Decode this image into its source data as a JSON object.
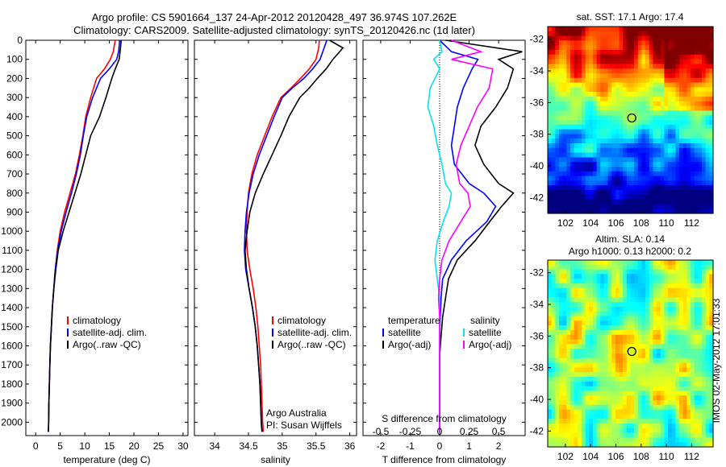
{
  "title_line1": "Argo profile: CS 5901664_137 24-Apr-2012 20120428_497 36.974S 107.262E",
  "title_line2": "Climatology: CARS2009. Satellite-adjusted climatology: synTS_20120426.nc (1d later)",
  "colors": {
    "climatology": "#ff0000",
    "satellite": "#0000ff",
    "argo": "#000000",
    "sat_salinity": "#00e5ee",
    "argo_salinity": "#ff00ff",
    "frame": "#000000"
  },
  "chart_data": [
    {
      "id": "temperature",
      "type": "line",
      "xlabel": "temperature (deg C)",
      "ylabel": "",
      "xlim": [
        -2,
        31
      ],
      "ylim": [
        2070,
        0
      ],
      "xticks": [
        0,
        5,
        10,
        15,
        20,
        25,
        30
      ],
      "xtick_labels": [
        "0",
        "5",
        "10",
        "15",
        "20",
        "25",
        "30"
      ],
      "yticks": [
        0,
        100,
        200,
        300,
        400,
        500,
        600,
        700,
        800,
        900,
        1000,
        1100,
        1200,
        1300,
        1400,
        1500,
        1600,
        1700,
        1800,
        1900,
        2000
      ],
      "ytick_labels": [
        "0",
        "100",
        "200",
        "300",
        "400",
        "500",
        "600",
        "700",
        "800",
        "900",
        "1000",
        "1100",
        "1200",
        "1300",
        "1400",
        "1500",
        "1600",
        "1700",
        "1800",
        "1900",
        "2000"
      ],
      "legend": [
        "climatology",
        "satellite-adj. clim.",
        "Argo(..raw -QC)"
      ],
      "legend_position": "lower-left",
      "series": [
        {
          "name": "climatology",
          "color": "#ff0000",
          "x": [
            16.2,
            16.0,
            15.8,
            15.2,
            14.0,
            12.4,
            11.2,
            10.2,
            9.6,
            8.9,
            8.1,
            7.0,
            5.9,
            5.0,
            4.4,
            4.0,
            3.7,
            3.4,
            3.2,
            3.0,
            2.9,
            2.8,
            2.7,
            2.65,
            2.6
          ],
          "y": [
            0,
            30,
            60,
            100,
            150,
            200,
            300,
            400,
            500,
            600,
            700,
            800,
            900,
            1000,
            1100,
            1200,
            1300,
            1400,
            1500,
            1600,
            1700,
            1800,
            1900,
            2000,
            2050
          ]
        },
        {
          "name": "satellite-adj. clim.",
          "color": "#0000ff",
          "x": [
            17.1,
            17.0,
            16.9,
            16.5,
            15.0,
            13.2,
            11.6,
            10.4,
            9.7,
            9.1,
            8.3,
            7.3,
            6.2,
            5.2,
            4.5,
            4.0,
            3.7,
            3.4,
            3.2,
            3.0,
            2.9,
            2.8,
            2.7,
            2.65,
            2.6
          ],
          "y": [
            0,
            30,
            60,
            100,
            150,
            200,
            300,
            400,
            500,
            600,
            700,
            800,
            900,
            1000,
            1100,
            1200,
            1300,
            1400,
            1500,
            1600,
            1700,
            1800,
            1900,
            2000,
            2050
          ]
        },
        {
          "name": "Argo(..raw -QC)",
          "color": "#000000",
          "x": [
            17.4,
            17.3,
            17.2,
            17.0,
            16.2,
            15.5,
            14.3,
            13.0,
            11.2,
            10.2,
            9.2,
            8.0,
            6.8,
            5.6,
            4.6,
            4.1,
            3.7,
            3.4,
            3.2,
            3.0,
            2.9,
            2.8,
            2.7,
            2.65,
            2.6
          ],
          "y": [
            0,
            30,
            60,
            100,
            150,
            200,
            300,
            400,
            500,
            600,
            700,
            800,
            900,
            1000,
            1100,
            1200,
            1300,
            1400,
            1500,
            1600,
            1700,
            1800,
            1900,
            2000,
            2050
          ]
        }
      ]
    },
    {
      "id": "salinity",
      "type": "line",
      "xlabel": "salinity",
      "ylabel": "",
      "xlim": [
        33.7,
        36.1
      ],
      "ylim": [
        2070,
        0
      ],
      "xticks": [
        34,
        34.5,
        35,
        35.5,
        36
      ],
      "xtick_labels": [
        "34",
        "34.5",
        "35",
        "35.5",
        "36"
      ],
      "legend": [
        "climatology",
        "satellite-adj. clim.",
        "Argo(..raw -QC)"
      ],
      "legend_position": "lower-right",
      "annotation": [
        "Argo Australia",
        "PI: Susan Wijffels"
      ],
      "series": [
        {
          "name": "climatology",
          "color": "#ff0000",
          "x": [
            35.55,
            35.54,
            35.5,
            35.4,
            35.27,
            35.13,
            34.98,
            34.85,
            34.74,
            34.63,
            34.55,
            34.5,
            34.48,
            34.47,
            34.48,
            34.52,
            34.57,
            34.61,
            34.64,
            34.66,
            34.68,
            34.69,
            34.7,
            34.71,
            34.72
          ],
          "y": [
            0,
            40,
            100,
            150,
            200,
            250,
            300,
            400,
            500,
            600,
            700,
            800,
            900,
            1000,
            1100,
            1200,
            1300,
            1400,
            1500,
            1600,
            1700,
            1800,
            1900,
            2000,
            2050
          ]
        },
        {
          "name": "satellite-adj. clim.",
          "color": "#0000ff",
          "x": [
            35.66,
            35.62,
            35.56,
            35.45,
            35.32,
            35.15,
            35.0,
            34.88,
            34.77,
            34.66,
            34.57,
            34.51,
            34.47,
            34.45,
            34.44,
            34.46,
            34.51,
            34.56,
            34.6,
            34.63,
            34.65,
            34.67,
            34.68,
            34.69,
            34.7
          ],
          "y": [
            0,
            40,
            100,
            150,
            200,
            250,
            300,
            400,
            500,
            600,
            700,
            800,
            900,
            1000,
            1100,
            1200,
            1300,
            1400,
            1500,
            1600,
            1700,
            1800,
            1900,
            2000,
            2050
          ]
        },
        {
          "name": "Argo(..raw -QC)",
          "color": "#000000",
          "x": [
            35.7,
            35.9,
            35.75,
            35.65,
            35.52,
            35.4,
            35.26,
            35.1,
            34.98,
            34.85,
            34.72,
            34.6,
            34.52,
            34.48,
            34.45,
            34.47,
            34.51,
            34.56,
            34.6,
            34.63,
            34.65,
            34.67,
            34.68,
            34.69,
            34.7
          ],
          "y": [
            0,
            40,
            100,
            150,
            200,
            250,
            300,
            400,
            500,
            600,
            700,
            800,
            900,
            1000,
            1100,
            1200,
            1300,
            1400,
            1500,
            1600,
            1700,
            1800,
            1900,
            2000,
            2050
          ]
        }
      ]
    },
    {
      "id": "difference",
      "type": "line",
      "xlabel": "T difference from climatology",
      "xlabel_top": "S difference from climatology",
      "xlim": [
        -2.6,
        2.9
      ],
      "ylim": [
        2070,
        0
      ],
      "xticks": [
        -2,
        -1,
        0,
        1,
        2
      ],
      "xtick_labels": [
        "-2",
        "-1",
        "0",
        "1",
        "2"
      ],
      "s_xticks": [
        -0.5,
        -0.25,
        0,
        0.25,
        0.5
      ],
      "s_xtick_labels": [
        "-0.5",
        "-0.25",
        "0",
        "0.25",
        "0.5"
      ],
      "legend_temperature_title": "temperature",
      "legend_salinity_title": "salinity",
      "legend_temperature": [
        "satellite",
        "Argo(-adj)"
      ],
      "legend_salinity": [
        "satellite",
        "Argo(-adj)"
      ],
      "legend_position": "lower",
      "series": [
        {
          "name": "satellite",
          "variable": "temperature",
          "color": "#0000ff",
          "x": [
            0.0,
            0.4,
            1.3,
            1.1,
            0.8,
            0.6,
            0.5,
            0.4,
            0.5,
            1.0,
            1.5,
            1.9,
            1.6,
            0.9,
            0.4,
            0.1,
            0.05,
            0.02,
            0.0,
            0.0,
            0.0,
            0.0,
            0.0,
            0.0
          ],
          "y": [
            0,
            60,
            100,
            150,
            250,
            350,
            450,
            550,
            650,
            750,
            800,
            870,
            950,
            1050,
            1150,
            1250,
            1350,
            1450,
            1550,
            1650,
            1750,
            1850,
            1950,
            2050
          ]
        },
        {
          "name": "Argo(-adj)",
          "variable": "temperature",
          "color": "#000000",
          "x": [
            0.2,
            2.8,
            2.0,
            2.5,
            2.3,
            1.9,
            1.4,
            1.2,
            1.5,
            2.0,
            2.5,
            2.1,
            1.7,
            1.2,
            0.6,
            0.3,
            0.2,
            0.1,
            0.05,
            0.0,
            0.0,
            0.0,
            0.0,
            0.0
          ],
          "y": [
            0,
            60,
            100,
            150,
            250,
            350,
            450,
            550,
            650,
            750,
            800,
            870,
            950,
            1050,
            1150,
            1250,
            1350,
            1450,
            1550,
            1650,
            1750,
            1850,
            1950,
            2050
          ]
        },
        {
          "name": "satellite",
          "variable": "salinity",
          "color": "#00e5ee",
          "x": [
            0.0,
            0.02,
            -0.05,
            0.0,
            -0.08,
            -0.1,
            -0.05,
            -0.02,
            0.02,
            0.05,
            0.1,
            0.08,
            0.03,
            -0.02,
            -0.04,
            -0.02,
            0.0,
            0.0,
            0.0,
            0.0,
            0.0,
            0.0,
            0.0,
            0.0
          ],
          "y": [
            0,
            60,
            100,
            150,
            250,
            350,
            450,
            550,
            650,
            750,
            800,
            870,
            950,
            1050,
            1150,
            1250,
            1350,
            1450,
            1550,
            1650,
            1750,
            1850,
            1950,
            2050
          ]
        },
        {
          "name": "Argo(-adj)",
          "variable": "salinity",
          "color": "#ff00ff",
          "x": [
            0.1,
            0.35,
            0.1,
            0.45,
            0.42,
            0.32,
            0.25,
            0.18,
            0.14,
            0.17,
            0.24,
            0.26,
            0.18,
            0.08,
            0.02,
            0.0,
            -0.01,
            0.0,
            0.0,
            0.0,
            0.0,
            0.0,
            0.0,
            0.0
          ],
          "y": [
            0,
            60,
            100,
            150,
            250,
            350,
            450,
            550,
            650,
            750,
            800,
            870,
            950,
            1050,
            1150,
            1250,
            1350,
            1450,
            1550,
            1650,
            1750,
            1850,
            1950,
            2050
          ]
        }
      ]
    },
    {
      "id": "sst_map",
      "type": "heatmap",
      "title": "sat. SST: 17.1  Argo: 17.4",
      "xlim": [
        100.6,
        113.7
      ],
      "ylim": [
        -43,
        -31.2
      ],
      "xticks": [
        102,
        104,
        106,
        108,
        110,
        112
      ],
      "xtick_labels": [
        "102",
        "104",
        "106",
        "108",
        "110",
        "112"
      ],
      "yticks": [
        -32,
        -34,
        -36,
        -38,
        -40,
        -42
      ],
      "ytick_labels": [
        "-32",
        "-34",
        "-36",
        "-38",
        "-40",
        "-42"
      ],
      "marker": {
        "lon": 107.262,
        "lat": -36.974
      }
    },
    {
      "id": "sla_map",
      "type": "heatmap",
      "title_line1": "Altim. SLA: 0.14",
      "title_line2": "Argo h1000: 0.13  h2000: 0.2",
      "xlim": [
        100.6,
        113.7
      ],
      "ylim": [
        -43,
        -31.2
      ],
      "xticks": [
        102,
        104,
        106,
        108,
        110,
        112
      ],
      "xtick_labels": [
        "102",
        "104",
        "106",
        "108",
        "110",
        "112"
      ],
      "yticks": [
        -32,
        -34,
        -36,
        -38,
        -40,
        -42
      ],
      "ytick_labels": [
        "-32",
        "-34",
        "-36",
        "-38",
        "-40",
        "-42"
      ],
      "marker": {
        "lon": 107.262,
        "lat": -36.974
      }
    }
  ],
  "side_label": "IMOS 02-May-2012 17:01:33"
}
